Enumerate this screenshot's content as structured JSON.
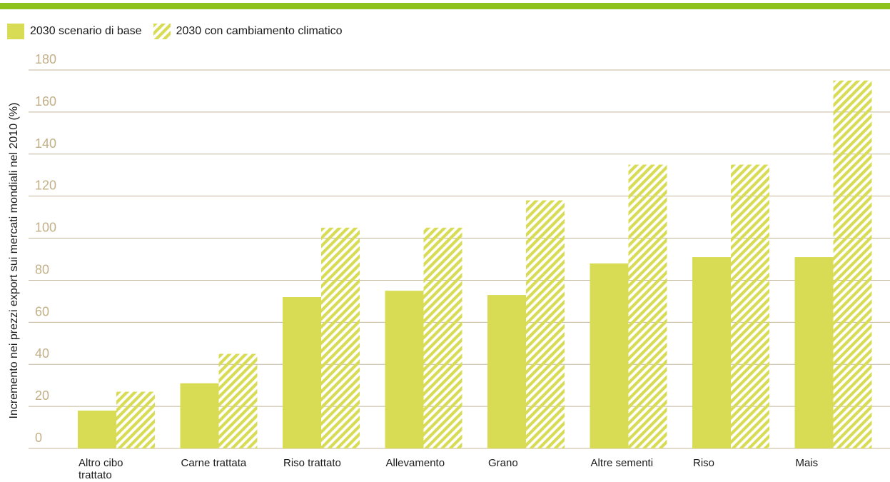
{
  "colors": {
    "accent_rule": "#8DC21F",
    "bar_base": "#D8DC55",
    "bar_hatch": "#D8DC55",
    "grid": "#C4B69A",
    "tick_label": "#C2B088",
    "text": "#1a1a1a"
  },
  "chart_data": {
    "type": "bar",
    "ylabel": "Incremento nei prezzi export sui mercati mondiali nel 2010 (%)",
    "ylim": [
      0,
      180
    ],
    "yticks": [
      0,
      20,
      40,
      60,
      80,
      100,
      120,
      140,
      160,
      180
    ],
    "grid": true,
    "legend_position": "top-left",
    "categories": [
      "Altro cibo trattato",
      "Carne trattata",
      "Riso trattato",
      "Allevamento",
      "Grano",
      "Altre sementi",
      "Riso",
      "Mais"
    ],
    "series": [
      {
        "name": "2030 scenario di base",
        "style": "solid",
        "values": [
          18,
          31,
          72,
          75,
          73,
          88,
          91,
          91
        ]
      },
      {
        "name": "2030 con cambiamento climatico",
        "style": "hatched",
        "values": [
          27,
          45,
          105,
          105,
          118,
          135,
          135,
          175
        ]
      }
    ]
  }
}
